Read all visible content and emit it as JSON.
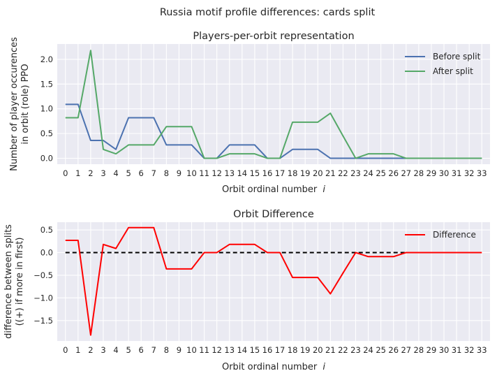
{
  "suptitle": "Russia motif profile differences: cards split",
  "chart_data": [
    {
      "type": "line",
      "title": "Players-per-orbit representation",
      "xlabel": "Orbit ordinal number ",
      "xlabel_var": "i",
      "ylabel_line1": "Number of player occurences",
      "ylabel_line2": "in orbit (role) PPO",
      "x": [
        0,
        1,
        2,
        3,
        4,
        5,
        6,
        7,
        8,
        9,
        10,
        11,
        12,
        13,
        14,
        15,
        16,
        17,
        18,
        19,
        20,
        21,
        22,
        23,
        24,
        25,
        26,
        27,
        28,
        29,
        30,
        31,
        32,
        33
      ],
      "xlim": [
        -0.65,
        33.65
      ],
      "ylim": [
        -0.12,
        2.31
      ],
      "yticks": [
        0.0,
        0.5,
        1.0,
        1.5,
        2.0
      ],
      "ytick_labels": [
        "0.0",
        "0.5",
        "1.0",
        "1.5",
        "2.0"
      ],
      "grid": true,
      "legend_position": "top-right",
      "series": [
        {
          "name": "Before split",
          "color": "#4c72b0",
          "values": [
            1.09,
            1.09,
            0.36,
            0.36,
            0.18,
            0.82,
            0.82,
            0.82,
            0.27,
            0.27,
            0.27,
            0.0,
            0.0,
            0.27,
            0.27,
            0.27,
            0.0,
            0.0,
            0.18,
            0.18,
            0.18,
            0.0,
            0.0,
            0.0,
            0.0,
            0.0,
            0.0,
            0.0,
            0.0,
            0.0,
            0.0,
            0.0,
            0.0,
            0.0
          ]
        },
        {
          "name": "After split",
          "color": "#55a868",
          "values": [
            0.82,
            0.82,
            2.18,
            0.18,
            0.09,
            0.27,
            0.27,
            0.27,
            0.64,
            0.64,
            0.64,
            0.0,
            0.0,
            0.09,
            0.09,
            0.09,
            0.0,
            0.0,
            0.73,
            0.73,
            0.73,
            0.91,
            0.45,
            0.0,
            0.09,
            0.09,
            0.09,
            0.0,
            0.0,
            0.0,
            0.0,
            0.0,
            0.0,
            0.0
          ]
        }
      ]
    },
    {
      "type": "line",
      "title": "Orbit Difference",
      "xlabel": "Orbit ordinal number ",
      "xlabel_var": "i",
      "ylabel_line1": "difference between splits",
      "ylabel_line2": "((+) if more in first)",
      "x": [
        0,
        1,
        2,
        3,
        4,
        5,
        6,
        7,
        8,
        9,
        10,
        11,
        12,
        13,
        14,
        15,
        16,
        17,
        18,
        19,
        20,
        21,
        22,
        23,
        24,
        25,
        26,
        27,
        28,
        29,
        30,
        31,
        32,
        33
      ],
      "xlim": [
        -0.65,
        33.65
      ],
      "ylim": [
        -1.95,
        0.67
      ],
      "yticks": [
        -1.5,
        -1.0,
        -0.5,
        0.0,
        0.5
      ],
      "ytick_labels": [
        "−1.5",
        "−1.0",
        "−0.5",
        "0.0",
        "0.5"
      ],
      "grid": true,
      "legend_position": "top-right",
      "zero_line": {
        "color": "#000000",
        "style": "dashed",
        "from_x": 0,
        "to_x": 33
      },
      "series": [
        {
          "name": "Difference",
          "color": "#ff0000",
          "values": [
            0.27,
            0.27,
            -1.82,
            0.18,
            0.09,
            0.55,
            0.55,
            0.55,
            -0.36,
            -0.36,
            -0.36,
            0.0,
            0.0,
            0.18,
            0.18,
            0.18,
            0.0,
            0.0,
            -0.55,
            -0.55,
            -0.55,
            -0.91,
            -0.45,
            0.0,
            -0.09,
            -0.09,
            -0.09,
            0.0,
            0.0,
            0.0,
            0.0,
            0.0,
            0.0,
            0.0
          ]
        }
      ]
    }
  ]
}
